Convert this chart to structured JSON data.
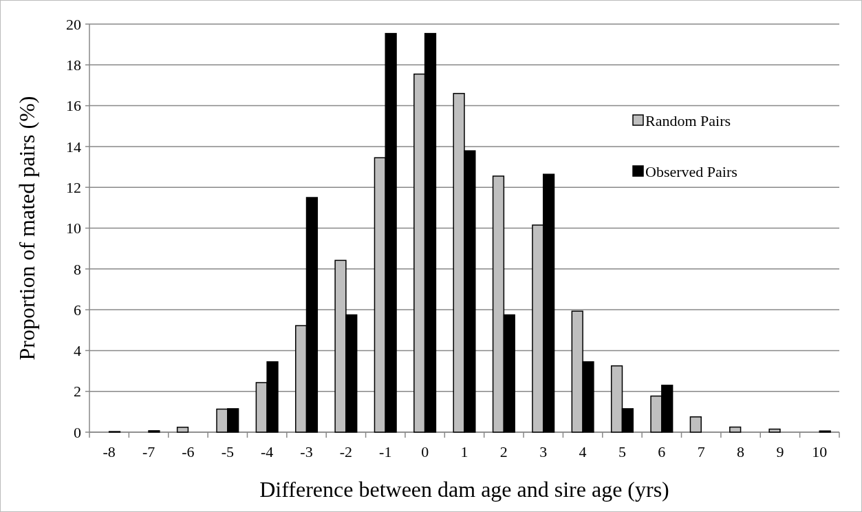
{
  "chart_data": {
    "type": "bar",
    "xlabel": "Difference between dam age and sire age (yrs)",
    "ylabel": "Proportion of mated pairs (%)",
    "categories": [
      "-8",
      "-7",
      "-6",
      "-5",
      "-4",
      "-3",
      "-2",
      "-1",
      "0",
      "1",
      "2",
      "3",
      "4",
      "5",
      "6",
      "7",
      "8",
      "9",
      "10"
    ],
    "series": [
      {
        "name": "Random Pairs",
        "color": "#bfbfbf",
        "values": [
          0,
          0,
          0.24,
          1.13,
          2.43,
          5.22,
          8.42,
          13.45,
          17.55,
          16.6,
          12.55,
          10.15,
          5.93,
          3.25,
          1.77,
          0.75,
          0.25,
          0.15,
          0
        ]
      },
      {
        "name": "Observed Pairs",
        "color": "#000000",
        "values": [
          0.03,
          0.07,
          0,
          1.15,
          3.45,
          11.5,
          5.75,
          19.54,
          19.54,
          13.79,
          5.75,
          12.64,
          3.45,
          1.15,
          2.3,
          0,
          0,
          0,
          0.06
        ]
      }
    ],
    "ylim": [
      0,
      20
    ],
    "yticks": [
      0,
      2,
      4,
      6,
      8,
      10,
      12,
      14,
      16,
      18,
      20
    ],
    "grid": "y",
    "legend": "top right"
  }
}
